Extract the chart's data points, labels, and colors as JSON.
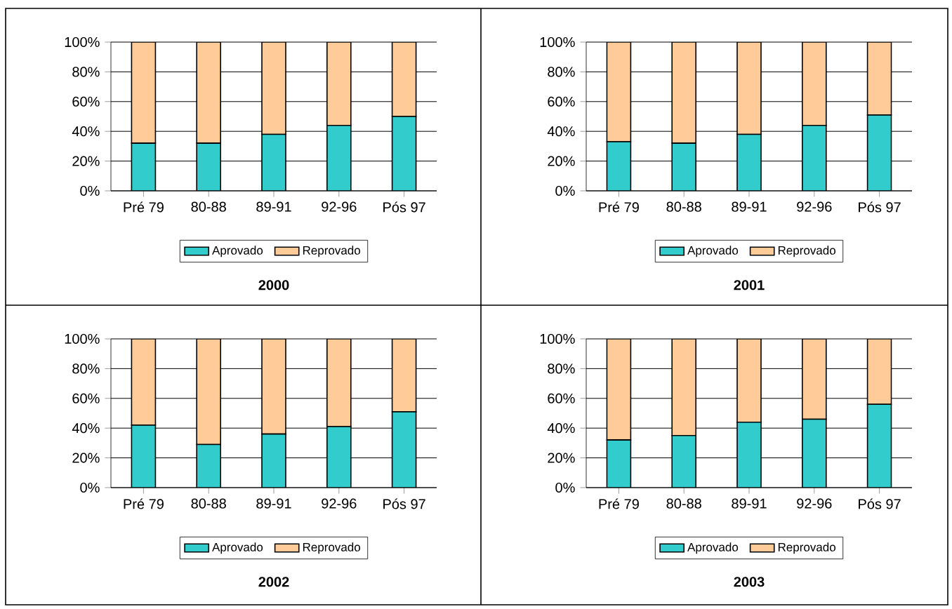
{
  "chart_data": [
    {
      "type": "bar",
      "title": "2000",
      "stacked": true,
      "grid": "y",
      "legend": "bottom",
      "categories": [
        "Pré 79",
        "80-88",
        "89-91",
        "92-96",
        "Pós 97"
      ],
      "ylim": [
        0,
        100
      ],
      "yticks": [
        {
          "value": 0,
          "label": "0%"
        },
        {
          "value": 20,
          "label": "20%"
        },
        {
          "value": 40,
          "label": "40%"
        },
        {
          "value": 60,
          "label": "60%"
        },
        {
          "value": 80,
          "label": "80%"
        },
        {
          "value": 100,
          "label": "100%"
        }
      ],
      "series": [
        {
          "name": "Aprovado",
          "color": "#33cccc",
          "values": [
            32,
            32,
            38,
            44,
            50
          ]
        },
        {
          "name": "Reprovado",
          "color": "#ffcc99",
          "values": [
            68,
            68,
            62,
            56,
            50
          ]
        }
      ]
    },
    {
      "type": "bar",
      "title": "2001",
      "stacked": true,
      "grid": "y",
      "legend": "bottom",
      "categories": [
        "Pré 79",
        "80-88",
        "89-91",
        "92-96",
        "Pós 97"
      ],
      "ylim": [
        0,
        100
      ],
      "yticks": [
        {
          "value": 0,
          "label": "0%"
        },
        {
          "value": 20,
          "label": "20%"
        },
        {
          "value": 40,
          "label": "40%"
        },
        {
          "value": 60,
          "label": "60%"
        },
        {
          "value": 80,
          "label": "80%"
        },
        {
          "value": 100,
          "label": "100%"
        }
      ],
      "series": [
        {
          "name": "Aprovado",
          "color": "#33cccc",
          "values": [
            33,
            32,
            38,
            44,
            51
          ]
        },
        {
          "name": "Reprovado",
          "color": "#ffcc99",
          "values": [
            67,
            68,
            62,
            56,
            49
          ]
        }
      ]
    },
    {
      "type": "bar",
      "title": "2002",
      "stacked": true,
      "grid": "y",
      "legend": "bottom",
      "categories": [
        "Pré 79",
        "80-88",
        "89-91",
        "92-96",
        "Pós 97"
      ],
      "ylim": [
        0,
        100
      ],
      "yticks": [
        {
          "value": 0,
          "label": "0%"
        },
        {
          "value": 20,
          "label": "20%"
        },
        {
          "value": 40,
          "label": "40%"
        },
        {
          "value": 60,
          "label": "60%"
        },
        {
          "value": 80,
          "label": "80%"
        },
        {
          "value": 100,
          "label": "100%"
        }
      ],
      "series": [
        {
          "name": "Aprovado",
          "color": "#33cccc",
          "values": [
            42,
            29,
            36,
            41,
            51
          ]
        },
        {
          "name": "Reprovado",
          "color": "#ffcc99",
          "values": [
            58,
            71,
            64,
            59,
            49
          ]
        }
      ]
    },
    {
      "type": "bar",
      "title": "2003",
      "stacked": true,
      "grid": "y",
      "legend": "bottom",
      "categories": [
        "Pré 79",
        "80-88",
        "89-91",
        "92-96",
        "Pós 97"
      ],
      "ylim": [
        0,
        100
      ],
      "yticks": [
        {
          "value": 0,
          "label": "0%"
        },
        {
          "value": 20,
          "label": "20%"
        },
        {
          "value": 40,
          "label": "40%"
        },
        {
          "value": 60,
          "label": "60%"
        },
        {
          "value": 80,
          "label": "80%"
        },
        {
          "value": 100,
          "label": "100%"
        }
      ],
      "series": [
        {
          "name": "Aprovado",
          "color": "#33cccc",
          "values": [
            32,
            35,
            44,
            46,
            56
          ]
        },
        {
          "name": "Reprovado",
          "color": "#ffcc99",
          "values": [
            68,
            65,
            56,
            54,
            44
          ]
        }
      ]
    }
  ]
}
